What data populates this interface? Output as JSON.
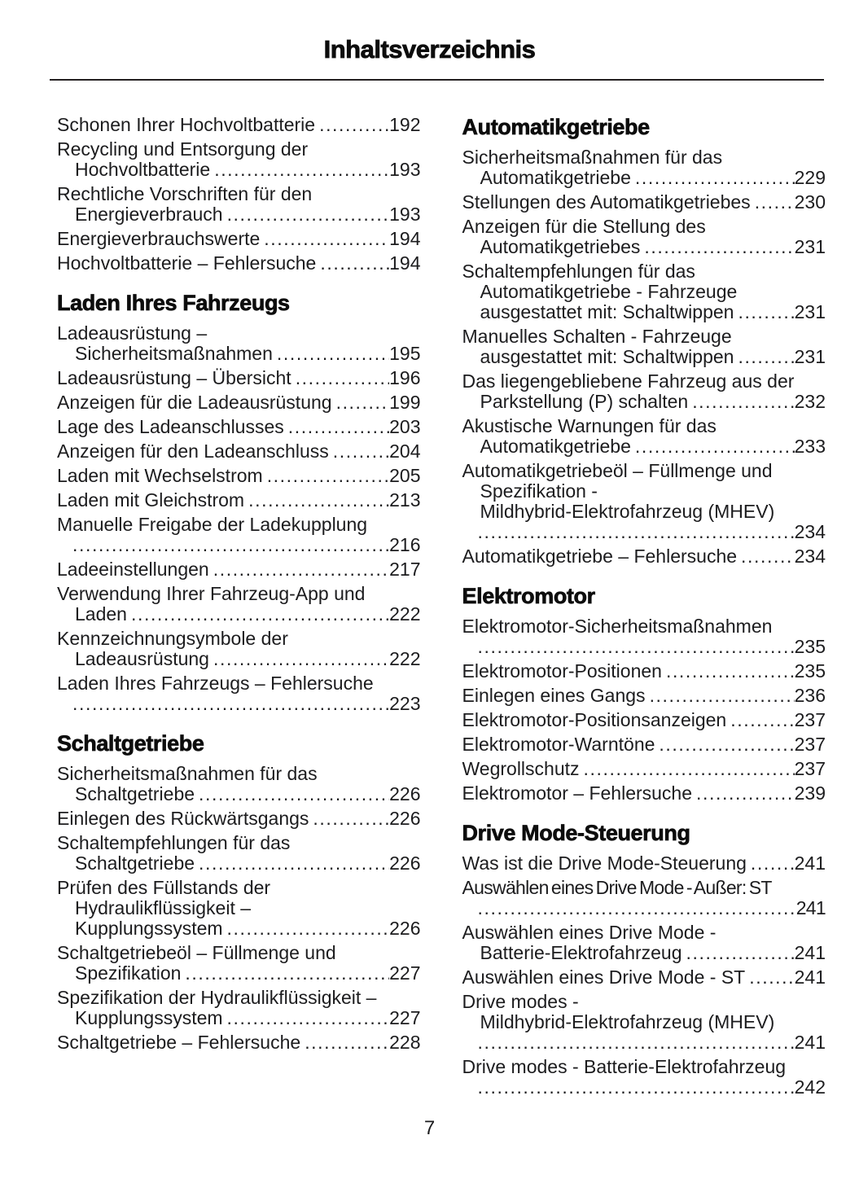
{
  "ink_color": "#1c1c1e",
  "heading_color": "#0d0d0d",
  "toc": {
    "title": "Inhaltsverzeichnis",
    "page_number": "7",
    "columns": [
      {
        "blocks": [
          {
            "type": "entry",
            "lines": [
              "Schonen Ihrer Hochvoltbatterie"
            ],
            "page": "192"
          },
          {
            "type": "entry",
            "lines": [
              "Recycling und Entsorgung der",
              "Hochvoltbatterie"
            ],
            "page": "193"
          },
          {
            "type": "entry",
            "lines": [
              "Rechtliche Vorschriften für den",
              "Energieverbrauch"
            ],
            "page": "193"
          },
          {
            "type": "entry",
            "lines": [
              "Energieverbrauchswerte"
            ],
            "page": "194"
          },
          {
            "type": "entry",
            "lines": [
              "Hochvoltbatterie – Fehlersuche"
            ],
            "page": "194"
          },
          {
            "type": "heading",
            "text": "Laden Ihres Fahrzeugs"
          },
          {
            "type": "entry",
            "lines": [
              "Ladeausrüstung –",
              "Sicherheitsmaßnahmen"
            ],
            "page": "195"
          },
          {
            "type": "entry",
            "lines": [
              "Ladeausrüstung – Übersicht"
            ],
            "page": "196"
          },
          {
            "type": "entry",
            "lines": [
              "Anzeigen für die Ladeausrüstung"
            ],
            "page": "199"
          },
          {
            "type": "entry",
            "lines": [
              "Lage des Ladeanschlusses"
            ],
            "page": "203"
          },
          {
            "type": "entry",
            "lines": [
              "Anzeigen für den Ladeanschluss"
            ],
            "page": "204"
          },
          {
            "type": "entry",
            "lines": [
              "Laden mit Wechselstrom"
            ],
            "page": "205"
          },
          {
            "type": "entry",
            "lines": [
              "Laden mit Gleichstrom"
            ],
            "page": "213"
          },
          {
            "type": "entry",
            "lines": [
              "Manuelle Freigabe der Ladekupplung"
            ],
            "page": "216",
            "page_own_line": true
          },
          {
            "type": "entry",
            "lines": [
              "Ladeeinstellungen"
            ],
            "page": "217"
          },
          {
            "type": "entry",
            "lines": [
              "Verwendung Ihrer Fahrzeug-App und",
              "Laden"
            ],
            "page": "222"
          },
          {
            "type": "entry",
            "lines": [
              "Kennzeichnungsymbole der",
              "Ladeausrüstung"
            ],
            "page": "222"
          },
          {
            "type": "entry",
            "lines": [
              "Laden Ihres Fahrzeugs – Fehlersuche"
            ],
            "page": "223",
            "page_own_line": true
          },
          {
            "type": "heading",
            "text": "Schaltgetriebe"
          },
          {
            "type": "entry",
            "lines": [
              "Sicherheitsmaßnahmen für das",
              "Schaltgetriebe"
            ],
            "page": "226"
          },
          {
            "type": "entry",
            "lines": [
              "Einlegen des Rückwärtsgangs"
            ],
            "page": "226"
          },
          {
            "type": "entry",
            "lines": [
              "Schaltempfehlungen für das",
              "Schaltgetriebe"
            ],
            "page": "226"
          },
          {
            "type": "entry",
            "lines": [
              "Prüfen des Füllstands der",
              "Hydraulikflüssigkeit –",
              "Kupplungssystem"
            ],
            "page": "226"
          },
          {
            "type": "entry",
            "lines": [
              "Schaltgetriebeöl – Füllmenge und",
              "Spezifikation"
            ],
            "page": "227"
          },
          {
            "type": "entry",
            "lines": [
              "Spezifikation der Hydraulikflüssigkeit –",
              "Kupplungssystem"
            ],
            "page": "227"
          },
          {
            "type": "entry",
            "lines": [
              "Schaltgetriebe – Fehlersuche"
            ],
            "page": "228"
          }
        ]
      },
      {
        "blocks": [
          {
            "type": "heading",
            "text": "Automatikgetriebe"
          },
          {
            "type": "entry",
            "lines": [
              "Sicherheitsmaßnahmen für das",
              "Automatikgetriebe"
            ],
            "page": "229"
          },
          {
            "type": "entry",
            "lines": [
              "Stellungen des Automatikgetriebes"
            ],
            "page": "230"
          },
          {
            "type": "entry",
            "lines": [
              "Anzeigen für die Stellung des",
              "Automatikgetriebes"
            ],
            "page": "231"
          },
          {
            "type": "entry",
            "lines": [
              "Schaltempfehlungen für das",
              "Automatikgetriebe - Fahrzeuge",
              "ausgestattet mit: Schaltwippen"
            ],
            "page": "231"
          },
          {
            "type": "entry",
            "lines": [
              "Manuelles Schalten - Fahrzeuge",
              "ausgestattet mit: Schaltwippen"
            ],
            "page": "231"
          },
          {
            "type": "entry",
            "lines": [
              "Das liegengebliebene Fahrzeug aus der",
              "Parkstellung (P) schalten"
            ],
            "page": "232"
          },
          {
            "type": "entry",
            "lines": [
              "Akustische Warnungen für das",
              "Automatikgetriebe"
            ],
            "page": "233"
          },
          {
            "type": "entry",
            "lines": [
              "Automatikgetriebeöl – Füllmenge und",
              "Spezifikation -",
              "Mildhybrid-Elektrofahrzeug (MHEV)"
            ],
            "page": "234",
            "page_own_line": true
          },
          {
            "type": "entry",
            "lines": [
              "Automatikgetriebe – Fehlersuche"
            ],
            "page": "234"
          },
          {
            "type": "heading",
            "text": "Elektromotor"
          },
          {
            "type": "entry",
            "lines": [
              "Elektromotor-Sicherheitsmaßnahmen"
            ],
            "page": "235",
            "page_own_line": true
          },
          {
            "type": "entry",
            "lines": [
              "Elektromotor-Positionen"
            ],
            "page": "235"
          },
          {
            "type": "entry",
            "lines": [
              "Einlegen eines Gangs"
            ],
            "page": "236"
          },
          {
            "type": "entry",
            "lines": [
              "Elektromotor-Positionsanzeigen"
            ],
            "page": "237"
          },
          {
            "type": "entry",
            "lines": [
              "Elektromotor-Warntöne"
            ],
            "page": "237"
          },
          {
            "type": "entry",
            "lines": [
              "Wegrollschutz"
            ],
            "page": "237"
          },
          {
            "type": "entry",
            "lines": [
              "Elektromotor – Fehlersuche"
            ],
            "page": "239"
          },
          {
            "type": "heading",
            "text": "Drive Mode-Steuerung"
          },
          {
            "type": "entry",
            "lines": [
              "Was ist die Drive Mode-Steuerung"
            ],
            "page": "241"
          },
          {
            "type": "entry",
            "lines": [
              "Auswählen eines Drive Mode - Außer: ST"
            ],
            "page": "241",
            "page_own_line": true,
            "tight": true
          },
          {
            "type": "entry",
            "lines": [
              "Auswählen eines Drive Mode -",
              "Batterie-Elektrofahrzeug"
            ],
            "page": "241"
          },
          {
            "type": "entry",
            "lines": [
              "Auswählen eines Drive Mode - ST"
            ],
            "page": "241"
          },
          {
            "type": "entry",
            "lines": [
              "Drive modes -",
              "Mildhybrid-Elektrofahrzeug (MHEV)"
            ],
            "page": "241",
            "page_own_line": true
          },
          {
            "type": "entry",
            "lines": [
              "Drive modes - Batterie-Elektrofahrzeug"
            ],
            "page": "242",
            "page_own_line": true
          }
        ]
      }
    ]
  }
}
